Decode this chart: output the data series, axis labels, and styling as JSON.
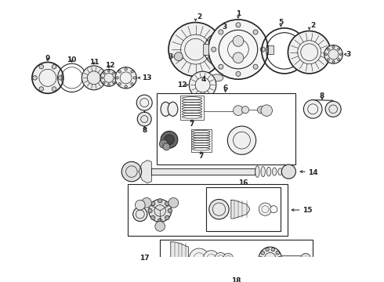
{
  "bg_color": "#ffffff",
  "line_color": "#222222",
  "fig_width": 4.9,
  "fig_height": 3.6,
  "dpi": 100
}
